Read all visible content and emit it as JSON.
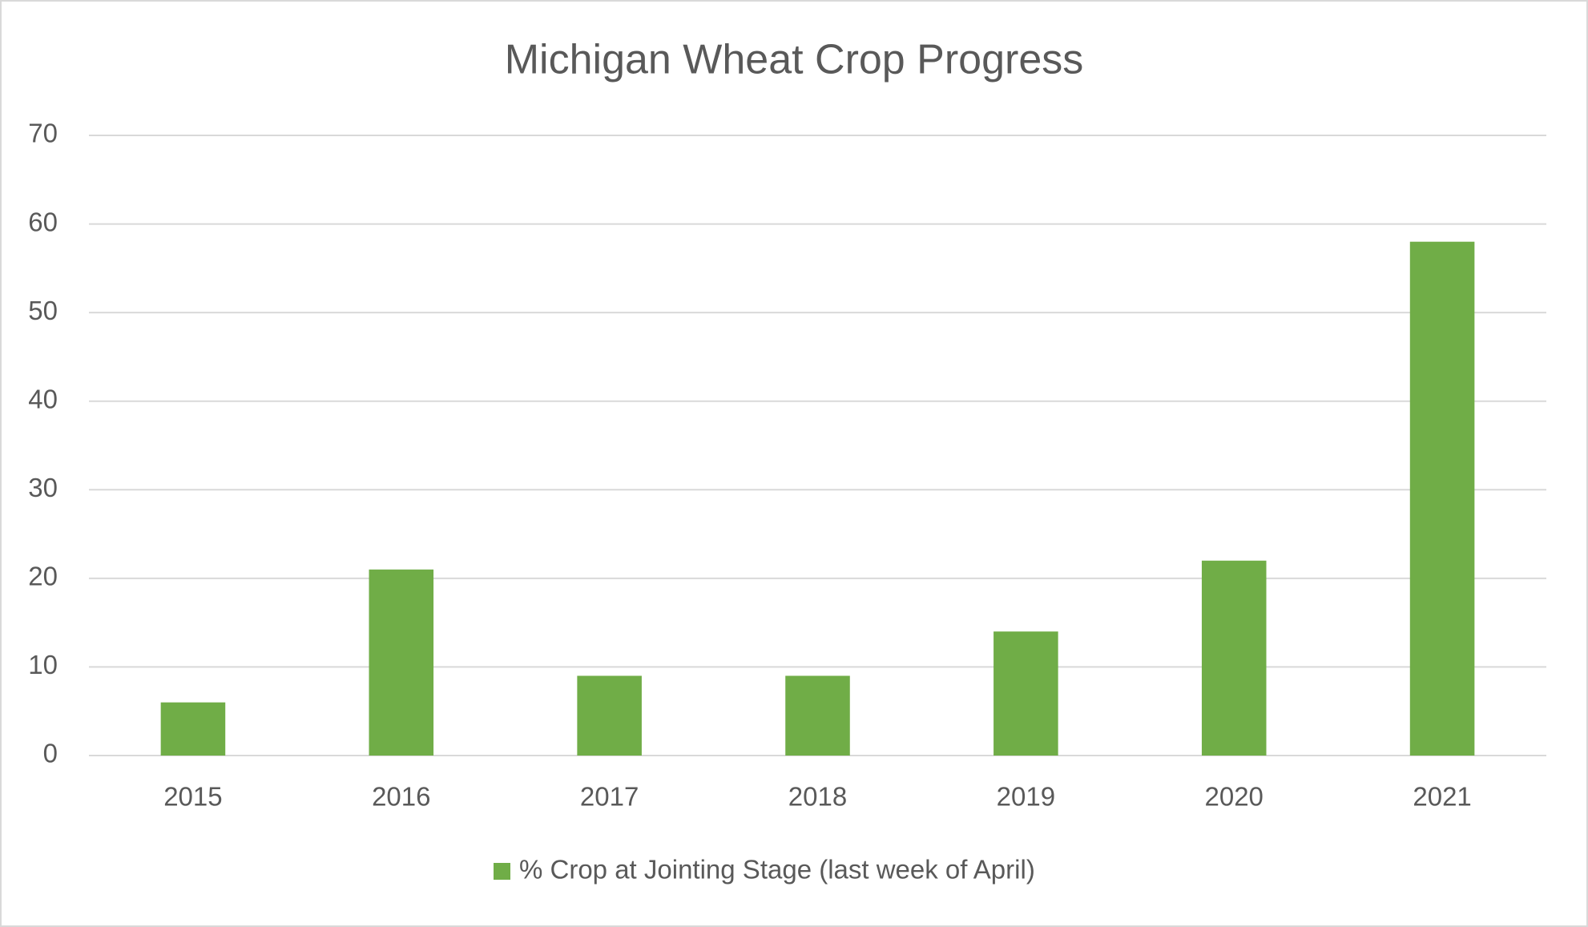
{
  "chart_data": {
    "type": "bar",
    "title": "Michigan Wheat Crop Progress",
    "categories": [
      "2015",
      "2016",
      "2017",
      "2018",
      "2019",
      "2020",
      "2021"
    ],
    "series": [
      {
        "name": "% Crop at Jointing Stage (last week of April)",
        "color": "#70ad47",
        "values": [
          6,
          21,
          9,
          9,
          14,
          22,
          58
        ]
      }
    ],
    "ylim": [
      0,
      70
    ],
    "yticks": [
      0,
      10,
      20,
      30,
      40,
      50,
      60,
      70
    ],
    "grid": true,
    "legend": "bottom"
  }
}
